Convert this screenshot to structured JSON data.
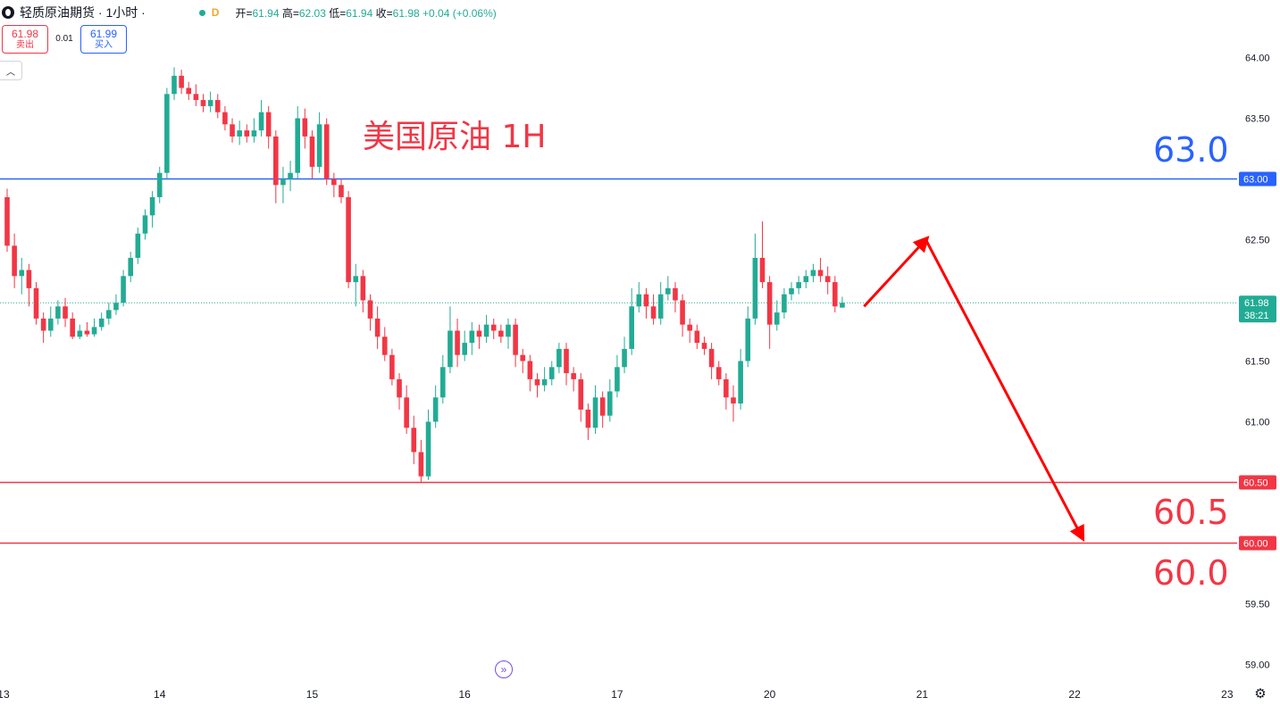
{
  "header": {
    "title": "轻质原油期货 · 1小时 ·",
    "badge": "D",
    "ohlc_open_label": "开=",
    "ohlc_open": "61.94",
    "ohlc_high_label": "高=",
    "ohlc_high": "62.03",
    "ohlc_low_label": "低=",
    "ohlc_low": "61.94",
    "ohlc_close_label": "收=",
    "ohlc_close": "61.98",
    "change": "+0.04 (+0.06%)"
  },
  "trade": {
    "sell_price": "61.98",
    "sell_label": "卖出",
    "spread": "0.01",
    "buy_price": "61.99",
    "buy_label": "买入"
  },
  "annotations": {
    "title": "美国原油 1H",
    "level_63": "63.0",
    "level_605": "60.5",
    "level_60": "60.0"
  },
  "colors": {
    "up": "#22ab94",
    "down": "#f23645",
    "blue_line": "#2962ff",
    "red_line": "#f23645",
    "arrow": "#ff0000"
  },
  "chart_data": {
    "type": "candlestick",
    "ylim": [
      58.8,
      64.3
    ],
    "y_ticks": [
      "59.00",
      "59.50",
      "60.00",
      "60.50",
      "61.00",
      "61.50",
      "62.00",
      "62.50",
      "63.00",
      "63.50",
      "64.00"
    ],
    "x_labels": [
      {
        "label": "13",
        "index": -0.5
      },
      {
        "label": "14",
        "index": 21
      },
      {
        "label": "15",
        "index": 42
      },
      {
        "label": "16",
        "index": 63
      },
      {
        "label": "17",
        "index": 84
      },
      {
        "label": "20",
        "index": 105
      },
      {
        "label": "21",
        "index": 126
      },
      {
        "label": "22",
        "index": 147
      },
      {
        "label": "23",
        "index": 168
      }
    ],
    "horizontal_lines": [
      {
        "price": 63.0,
        "label": "63.00",
        "color": "#2962ff"
      },
      {
        "price": 60.5,
        "label": "60.50",
        "color": "#f23645"
      },
      {
        "price": 60.0,
        "label": "60.00",
        "color": "#f23645"
      }
    ],
    "last_price": {
      "price": 61.98,
      "label": "61.98",
      "countdown": "38:21"
    },
    "projection": [
      {
        "index": 118,
        "price": 61.95
      },
      {
        "index": 126.5,
        "price": 62.5
      },
      {
        "index": 148,
        "price": 60.05
      }
    ],
    "candles": [
      [
        62.85,
        62.45,
        62.92,
        62.4
      ],
      [
        62.45,
        62.2,
        62.55,
        62.1
      ],
      [
        62.2,
        62.25,
        62.35,
        62.05
      ],
      [
        62.25,
        62.1,
        62.3,
        61.95
      ],
      [
        62.1,
        61.85,
        62.15,
        61.8
      ],
      [
        61.85,
        61.75,
        61.9,
        61.65
      ],
      [
        61.75,
        61.85,
        61.95,
        61.7
      ],
      [
        61.85,
        61.95,
        62.0,
        61.8
      ],
      [
        61.95,
        61.85,
        62.02,
        61.78
      ],
      [
        61.85,
        61.7,
        61.9,
        61.68
      ],
      [
        61.7,
        61.75,
        61.8,
        61.68
      ],
      [
        61.75,
        61.72,
        61.82,
        61.7
      ],
      [
        61.72,
        61.78,
        61.85,
        61.7
      ],
      [
        61.78,
        61.85,
        61.9,
        61.75
      ],
      [
        61.85,
        61.92,
        61.98,
        61.8
      ],
      [
        61.92,
        61.98,
        62.05,
        61.88
      ],
      [
        61.98,
        62.2,
        62.25,
        61.95
      ],
      [
        62.2,
        62.35,
        62.4,
        62.15
      ],
      [
        62.35,
        62.55,
        62.6,
        62.3
      ],
      [
        62.55,
        62.7,
        62.75,
        62.5
      ],
      [
        62.7,
        62.85,
        62.9,
        62.6
      ],
      [
        62.85,
        63.05,
        63.1,
        62.8
      ],
      [
        63.05,
        63.7,
        63.75,
        63.0
      ],
      [
        63.7,
        63.85,
        63.92,
        63.65
      ],
      [
        63.85,
        63.75,
        63.9,
        63.7
      ],
      [
        63.75,
        63.7,
        63.8,
        63.65
      ],
      [
        63.7,
        63.65,
        63.78,
        63.6
      ],
      [
        63.65,
        63.6,
        63.7,
        63.55
      ],
      [
        63.6,
        63.65,
        63.72,
        63.55
      ],
      [
        63.65,
        63.55,
        63.7,
        63.5
      ],
      [
        63.55,
        63.45,
        63.6,
        63.4
      ],
      [
        63.45,
        63.35,
        63.5,
        63.3
      ],
      [
        63.35,
        63.4,
        63.48,
        63.28
      ],
      [
        63.4,
        63.35,
        63.45,
        63.3
      ],
      [
        63.35,
        63.4,
        63.5,
        63.3
      ],
      [
        63.4,
        63.55,
        63.65,
        63.35
      ],
      [
        63.55,
        63.35,
        63.6,
        63.25
      ],
      [
        63.35,
        62.95,
        63.4,
        62.8
      ],
      [
        62.95,
        63.0,
        63.1,
        62.8
      ],
      [
        63.0,
        63.05,
        63.15,
        62.9
      ],
      [
        63.05,
        63.5,
        63.6,
        63.0
      ],
      [
        63.5,
        63.35,
        63.58,
        63.25
      ],
      [
        63.35,
        63.1,
        63.4,
        63.0
      ],
      [
        63.1,
        63.45,
        63.55,
        63.05
      ],
      [
        63.45,
        63.0,
        63.5,
        62.95
      ],
      [
        63.0,
        62.95,
        63.05,
        62.85
      ],
      [
        62.95,
        62.85,
        63.0,
        62.8
      ],
      [
        62.85,
        62.15,
        62.9,
        62.1
      ],
      [
        62.15,
        62.2,
        62.3,
        61.95
      ],
      [
        62.2,
        62.0,
        62.25,
        61.9
      ],
      [
        62.0,
        61.85,
        62.05,
        61.75
      ],
      [
        61.85,
        61.7,
        61.95,
        61.6
      ],
      [
        61.7,
        61.55,
        61.78,
        61.5
      ],
      [
        61.55,
        61.35,
        61.6,
        61.3
      ],
      [
        61.35,
        61.2,
        61.4,
        61.1
      ],
      [
        61.2,
        60.95,
        61.3,
        60.9
      ],
      [
        60.95,
        60.75,
        61.05,
        60.65
      ],
      [
        60.75,
        60.55,
        60.85,
        60.5
      ],
      [
        60.55,
        61.0,
        61.1,
        60.52
      ],
      [
        61.0,
        61.2,
        61.3,
        60.95
      ],
      [
        61.2,
        61.45,
        61.55,
        61.15
      ],
      [
        61.45,
        61.75,
        61.95,
        61.4
      ],
      [
        61.75,
        61.55,
        61.85,
        61.45
      ],
      [
        61.55,
        61.65,
        61.75,
        61.5
      ],
      [
        61.65,
        61.75,
        61.82,
        61.55
      ],
      [
        61.75,
        61.7,
        61.8,
        61.6
      ],
      [
        61.7,
        61.8,
        61.88,
        61.65
      ],
      [
        61.8,
        61.75,
        61.85,
        61.68
      ],
      [
        61.75,
        61.7,
        61.8,
        61.65
      ],
      [
        61.7,
        61.8,
        61.85,
        61.6
      ],
      [
        61.8,
        61.55,
        61.85,
        61.45
      ],
      [
        61.55,
        61.5,
        61.6,
        61.4
      ],
      [
        61.5,
        61.35,
        61.55,
        61.25
      ],
      [
        61.35,
        61.3,
        61.4,
        61.2
      ],
      [
        61.3,
        61.35,
        61.45,
        61.25
      ],
      [
        61.35,
        61.45,
        61.5,
        61.3
      ],
      [
        61.45,
        61.6,
        61.65,
        61.4
      ],
      [
        61.6,
        61.4,
        61.65,
        61.3
      ],
      [
        61.4,
        61.35,
        61.45,
        61.25
      ],
      [
        61.35,
        61.1,
        61.4,
        61.0
      ],
      [
        61.1,
        60.95,
        61.15,
        60.85
      ],
      [
        60.95,
        61.2,
        61.3,
        60.9
      ],
      [
        61.2,
        61.05,
        61.25,
        60.95
      ],
      [
        61.05,
        61.25,
        61.35,
        61.0
      ],
      [
        61.25,
        61.45,
        61.55,
        61.2
      ],
      [
        61.45,
        61.6,
        61.7,
        61.4
      ],
      [
        61.6,
        61.95,
        62.1,
        61.55
      ],
      [
        61.95,
        62.05,
        62.15,
        61.9
      ],
      [
        62.05,
        61.95,
        62.1,
        61.85
      ],
      [
        61.95,
        61.85,
        62.05,
        61.8
      ],
      [
        61.85,
        62.05,
        62.15,
        61.8
      ],
      [
        62.05,
        62.1,
        62.2,
        62.0
      ],
      [
        62.1,
        62.0,
        62.15,
        61.9
      ],
      [
        62.0,
        61.8,
        62.05,
        61.7
      ],
      [
        61.8,
        61.75,
        61.85,
        61.65
      ],
      [
        61.75,
        61.65,
        61.8,
        61.6
      ],
      [
        61.65,
        61.6,
        61.7,
        61.55
      ],
      [
        61.6,
        61.45,
        61.65,
        61.35
      ],
      [
        61.45,
        61.35,
        61.5,
        61.3
      ],
      [
        61.35,
        61.2,
        61.4,
        61.1
      ],
      [
        61.2,
        61.15,
        61.3,
        61.0
      ],
      [
        61.15,
        61.5,
        61.6,
        61.1
      ],
      [
        61.5,
        61.85,
        61.95,
        61.45
      ],
      [
        61.85,
        62.35,
        62.55,
        61.8
      ],
      [
        62.35,
        62.15,
        62.65,
        62.1
      ],
      [
        62.15,
        61.8,
        62.2,
        61.6
      ],
      [
        61.8,
        61.9,
        62.0,
        61.75
      ],
      [
        61.9,
        62.05,
        62.1,
        61.85
      ],
      [
        62.05,
        62.1,
        62.15,
        62.0
      ],
      [
        62.1,
        62.15,
        62.2,
        62.05
      ],
      [
        62.15,
        62.2,
        62.25,
        62.1
      ],
      [
        62.2,
        62.25,
        62.3,
        62.15
      ],
      [
        62.25,
        62.2,
        62.35,
        62.15
      ],
      [
        62.2,
        62.15,
        62.28,
        62.05
      ],
      [
        62.15,
        61.95,
        62.2,
        61.9
      ],
      [
        61.94,
        61.98,
        62.03,
        61.94
      ]
    ]
  }
}
